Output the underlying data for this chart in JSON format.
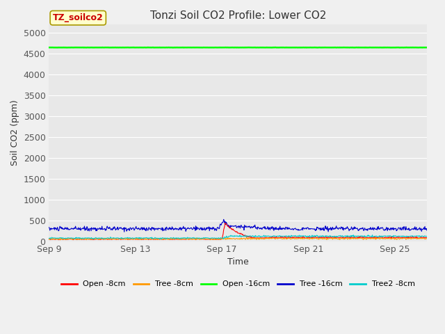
{
  "title": "Tonzi Soil CO2 Profile: Lower CO2",
  "xlabel": "Time",
  "ylabel": "Soil CO2 (ppm)",
  "ylim": [
    0,
    5200
  ],
  "yticks": [
    0,
    500,
    1000,
    1500,
    2000,
    2500,
    3000,
    3500,
    4000,
    4500,
    5000
  ],
  "bg_color": "#e8e8e8",
  "fig_color": "#f0f0f0",
  "annotation_text": "TZ_soilco2",
  "annotation_color": "#cc0000",
  "annotation_bg": "#ffffcc",
  "annotation_border": "#aa9900",
  "open16_value": 4650,
  "legend_entries": [
    {
      "label": "Open -8cm",
      "color": "#ff0000"
    },
    {
      "label": "Tree -8cm",
      "color": "#ff9900"
    },
    {
      "label": "Open -16cm",
      "color": "#00ff00"
    },
    {
      "label": "Tree -16cm",
      "color": "#0000cc"
    },
    {
      "label": "Tree2 -8cm",
      "color": "#00cccc"
    }
  ],
  "xticks_labels": [
    "Sep 9",
    "Sep 13",
    "Sep 17",
    "Sep 21",
    "Sep 25"
  ],
  "xticks_pos": [
    0,
    4,
    8,
    12,
    16
  ],
  "xlim": [
    0,
    17.5
  ],
  "title_fontsize": 11,
  "label_fontsize": 9,
  "tick_fontsize": 9
}
